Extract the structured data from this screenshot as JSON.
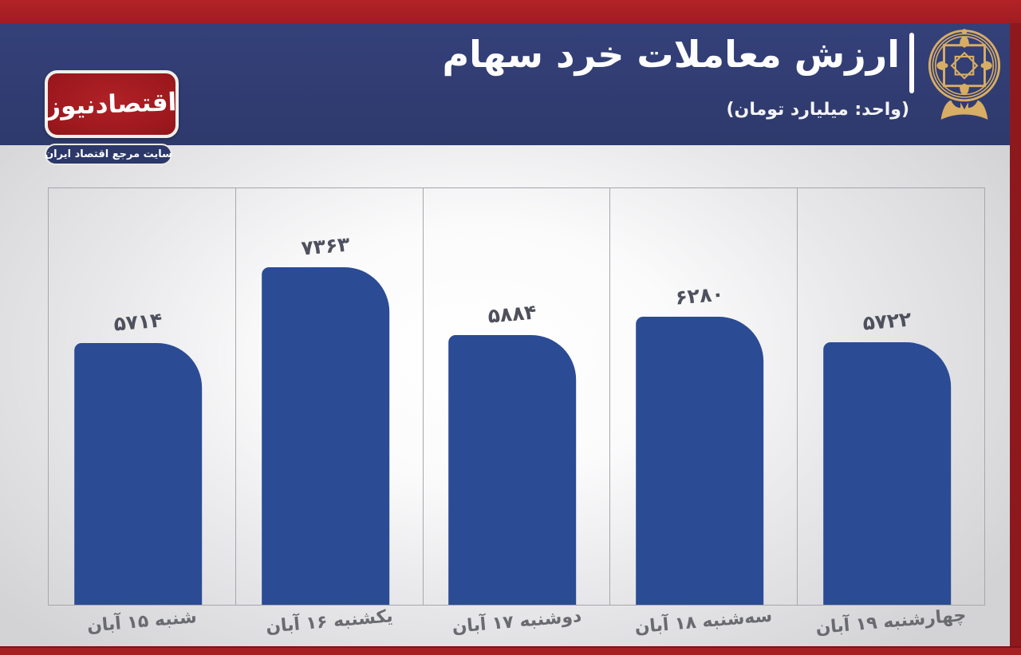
{
  "header": {
    "title": "ارزش معاملات خرد سهام",
    "separator": "|",
    "subtitle": "(واحد: میلیارد تومان)"
  },
  "brand": {
    "logo_text": "اقتصادنیوز",
    "tagline": "سایت مرجع اقتصاد ایران"
  },
  "chart_data": {
    "type": "bar",
    "title": "ارزش معاملات خرد سهام",
    "unit": "میلیارد تومان",
    "categories": [
      "شنبه ۱۵ آبان",
      "یکشنبه ۱۶ آبان",
      "دوشنبه ۱۷ آبان",
      "سه‌شنبه ۱۸ آبان",
      "چهارشنبه ۱۹ آبان"
    ],
    "values": [
      5714,
      7363,
      5884,
      6280,
      5722
    ],
    "value_labels": [
      "۵۷۱۴",
      "۷۳۶۳",
      "۵۸۸۴",
      "۶۲۸۰",
      "۵۷۲۲"
    ],
    "ylim": [
      0,
      7363
    ],
    "orientation": "vertical",
    "legend": "none",
    "grid": "column-separator-lines",
    "bar_color": "#2b4b94",
    "value_label_color": "#4e515d",
    "axis_label_color": "#6a6b71"
  },
  "colors": {
    "frame_red": "#a42023",
    "header_navy": "#2e3a6c",
    "logo_red": "#9c181d",
    "emblem_gold": "#d8ad64"
  }
}
